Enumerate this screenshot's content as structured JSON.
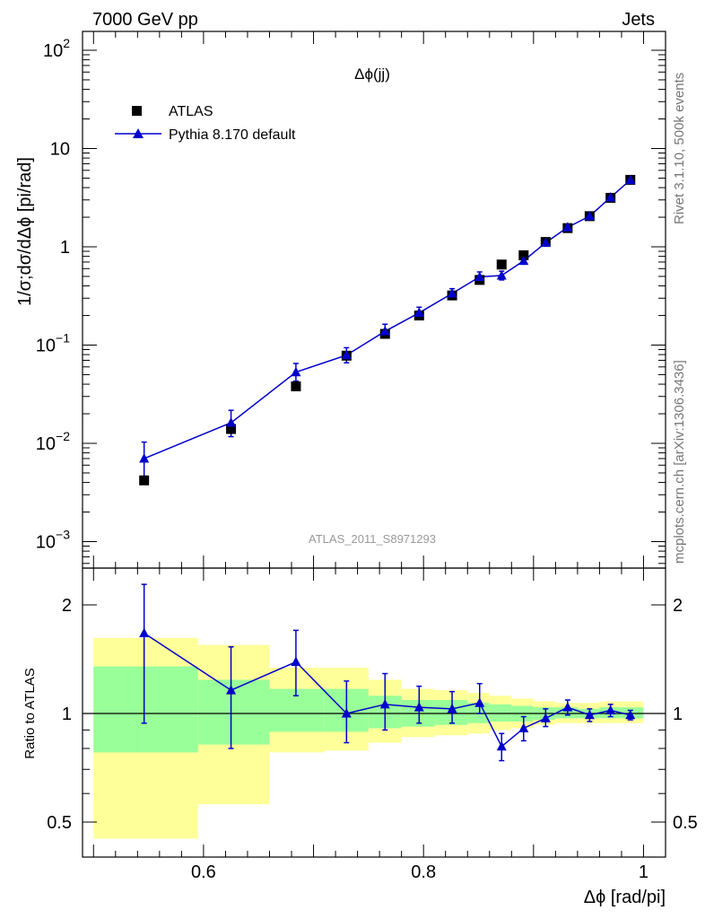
{
  "header": {
    "energy_label": "7000 GeV pp",
    "category_label": "Jets"
  },
  "side_labels": {
    "rivet": "Rivet 3.1.10,  500k events",
    "mcplots": "mcplots.cern.ch [arXiv:1306.3436]"
  },
  "chart_data": [
    {
      "type": "scatter",
      "title": "Δϕ(jj)",
      "ylabel": "1/σ;dσ/dΔϕ [pi/rad]",
      "y_scale": "log",
      "ylim": [
        0.0005,
        150
      ],
      "xlim": [
        0.49,
        1.02
      ],
      "y_ticks": [
        {
          "value": 100,
          "base": "10",
          "exp": "2"
        },
        {
          "value": 10,
          "base": "10",
          "exp": ""
        },
        {
          "value": 1,
          "base": "1",
          "exp": ""
        },
        {
          "value": 0.1,
          "base": "10",
          "exp": "−1"
        },
        {
          "value": 0.01,
          "base": "10",
          "exp": "−2"
        },
        {
          "value": 0.001,
          "base": "10",
          "exp": "−3"
        }
      ],
      "legend_position": "top-left",
      "watermark": "ATLAS_2011_S8971293",
      "series": [
        {
          "name": "ATLAS",
          "color": "#000000",
          "marker": "square",
          "x": [
            0.546,
            0.625,
            0.684,
            0.73,
            0.765,
            0.796,
            0.826,
            0.851,
            0.871,
            0.891,
            0.911,
            0.931,
            0.951,
            0.97,
            0.988
          ],
          "y": [
            0.0042,
            0.014,
            0.038,
            0.078,
            0.13,
            0.2,
            0.32,
            0.46,
            0.66,
            0.82,
            1.12,
            1.55,
            2.05,
            3.15,
            4.8
          ]
        },
        {
          "name": "Pythia 8.170 default",
          "color": "#0000cc",
          "marker": "triangle",
          "x": [
            0.546,
            0.625,
            0.684,
            0.73,
            0.765,
            0.796,
            0.826,
            0.851,
            0.871,
            0.891,
            0.911,
            0.931,
            0.951,
            0.97,
            0.988
          ],
          "y": [
            0.007,
            0.0162,
            0.053,
            0.079,
            0.138,
            0.213,
            0.335,
            0.495,
            0.51,
            0.72,
            1.1,
            1.58,
            2.05,
            3.18,
            4.78
          ],
          "yerr_up": [
            0.0033,
            0.0055,
            0.012,
            0.015,
            0.025,
            0.03,
            0.04,
            0.06,
            0.055,
            0.06,
            0.06,
            0.08,
            0.09,
            0.12,
            0.14
          ],
          "yerr_down": [
            0.0025,
            0.0045,
            0.01,
            0.013,
            0.02,
            0.025,
            0.035,
            0.05,
            0.05,
            0.055,
            0.055,
            0.07,
            0.08,
            0.11,
            0.13
          ]
        }
      ]
    },
    {
      "type": "scatter",
      "ylabel": "Ratio to ATLAS",
      "xlabel": "Δϕ [rad/pi]",
      "xlim": [
        0.49,
        1.02
      ],
      "ylim": [
        0.4,
        2.35
      ],
      "x_ticks": [
        "0.6",
        "0.8",
        "1"
      ],
      "y_ticks": [
        "0.5",
        "1",
        "2"
      ],
      "reference_line": 1,
      "bands": [
        {
          "xlo": 0.5,
          "xhi": 0.545,
          "inner": [
            0.78,
            1.35
          ],
          "outer": [
            0.45,
            1.62
          ]
        },
        {
          "xlo": 0.545,
          "xhi": 0.595,
          "inner": [
            0.78,
            1.35
          ],
          "outer": [
            0.45,
            1.62
          ]
        },
        {
          "xlo": 0.595,
          "xhi": 0.66,
          "inner": [
            0.82,
            1.24
          ],
          "outer": [
            0.56,
            1.55
          ]
        },
        {
          "xlo": 0.66,
          "xhi": 0.71,
          "inner": [
            0.89,
            1.17
          ],
          "outer": [
            0.78,
            1.34
          ]
        },
        {
          "xlo": 0.71,
          "xhi": 0.75,
          "inner": [
            0.89,
            1.17
          ],
          "outer": [
            0.79,
            1.34
          ]
        },
        {
          "xlo": 0.75,
          "xhi": 0.78,
          "inner": [
            0.91,
            1.12
          ],
          "outer": [
            0.83,
            1.24
          ]
        },
        {
          "xlo": 0.78,
          "xhi": 0.81,
          "inner": [
            0.92,
            1.09
          ],
          "outer": [
            0.86,
            1.17
          ]
        },
        {
          "xlo": 0.81,
          "xhi": 0.84,
          "inner": [
            0.93,
            1.09
          ],
          "outer": [
            0.87,
            1.16
          ]
        },
        {
          "xlo": 0.84,
          "xhi": 0.86,
          "inner": [
            0.94,
            1.07
          ],
          "outer": [
            0.88,
            1.14
          ]
        },
        {
          "xlo": 0.86,
          "xhi": 0.88,
          "inner": [
            0.95,
            1.06
          ],
          "outer": [
            0.9,
            1.12
          ]
        },
        {
          "xlo": 0.88,
          "xhi": 0.9,
          "inner": [
            0.95,
            1.05
          ],
          "outer": [
            0.91,
            1.1
          ]
        },
        {
          "xlo": 0.9,
          "xhi": 0.92,
          "inner": [
            0.96,
            1.04
          ],
          "outer": [
            0.93,
            1.08
          ]
        },
        {
          "xlo": 0.92,
          "xhi": 0.94,
          "inner": [
            0.97,
            1.04
          ],
          "outer": [
            0.94,
            1.07
          ]
        },
        {
          "xlo": 0.94,
          "xhi": 0.96,
          "inner": [
            0.97,
            1.03
          ],
          "outer": [
            0.94,
            1.07
          ]
        },
        {
          "xlo": 0.96,
          "xhi": 0.98,
          "inner": [
            0.97,
            1.04
          ],
          "outer": [
            0.94,
            1.08
          ]
        },
        {
          "xlo": 0.98,
          "xhi": 1.0,
          "inner": [
            0.97,
            1.04
          ],
          "outer": [
            0.94,
            1.08
          ]
        }
      ],
      "band_colors": {
        "inner": "#99ff99",
        "outer": "#ffff99"
      },
      "series": [
        {
          "color": "#0000cc",
          "marker": "triangle",
          "x": [
            0.546,
            0.625,
            0.684,
            0.73,
            0.765,
            0.796,
            0.826,
            0.851,
            0.871,
            0.891,
            0.911,
            0.931,
            0.951,
            0.97,
            0.988
          ],
          "y": [
            1.67,
            1.16,
            1.39,
            1.0,
            1.06,
            1.04,
            1.03,
            1.07,
            0.81,
            0.91,
            0.97,
            1.04,
            0.99,
            1.02,
            0.99
          ],
          "yerr_up": [
            0.61,
            0.37,
            0.31,
            0.23,
            0.23,
            0.15,
            0.12,
            0.14,
            0.07,
            0.07,
            0.06,
            0.05,
            0.04,
            0.04,
            0.03
          ],
          "yerr_down": [
            0.73,
            0.36,
            0.27,
            0.17,
            0.16,
            0.1,
            0.09,
            0.07,
            0.07,
            0.07,
            0.05,
            0.05,
            0.04,
            0.04,
            0.03
          ]
        }
      ]
    }
  ]
}
